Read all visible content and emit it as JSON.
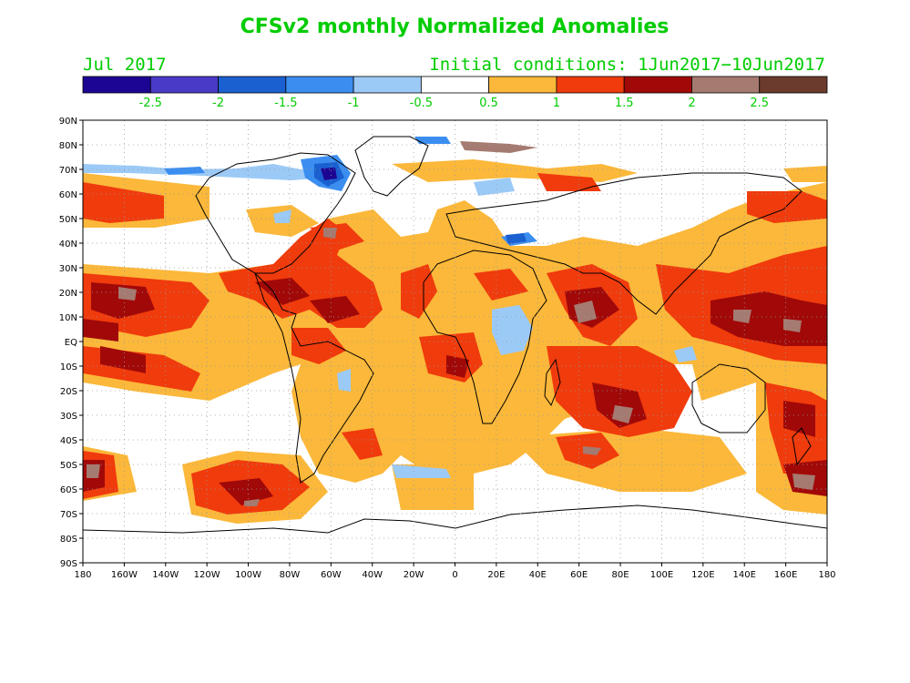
{
  "title": "CFSv2 monthly Normalized Anomalies",
  "month_label": "Jul 2017",
  "ic_label": "Initial conditions: 1Jun2017−10Jun2017",
  "colorbar": {
    "colors": [
      "#1d0594",
      "#4a3ac8",
      "#1a60d0",
      "#3b8ef0",
      "#9ccaf7",
      "#ffffff",
      "#fbb83a",
      "#f03b0c",
      "#a10909",
      "#a57a70",
      "#6b3b2e"
    ],
    "tick_labels": [
      "-2.5",
      "-2",
      "-1.5",
      "-1",
      "-0.5",
      "0.5",
      "1",
      "1.5",
      "2",
      "2.5"
    ]
  },
  "axes": {
    "lat_labels": [
      "90N",
      "80N",
      "70N",
      "60N",
      "50N",
      "40N",
      "30N",
      "20N",
      "10N",
      "EQ",
      "10S",
      "20S",
      "30S",
      "40S",
      "50S",
      "60S",
      "70S",
      "80S",
      "90S"
    ],
    "lon_labels": [
      "180",
      "160W",
      "140W",
      "120W",
      "100W",
      "80W",
      "60W",
      "40W",
      "20W",
      "0",
      "20E",
      "40E",
      "60E",
      "80E",
      "100E",
      "120E",
      "140E",
      "160E",
      "180"
    ]
  },
  "chart_data": {
    "type": "heatmap",
    "variable": "normalized anomaly",
    "lon_range": [
      -180,
      180
    ],
    "lat_range": [
      -90,
      90
    ],
    "grid": true,
    "anomaly_regions": [
      {
        "name": "n-pacific-warm",
        "lon": [
          -180,
          -150
        ],
        "lat": [
          45,
          65
        ],
        "level": 1
      },
      {
        "name": "ne-pacific-subtropics",
        "lon": [
          -180,
          -105
        ],
        "lat": [
          5,
          30
        ],
        "level": 1.5
      },
      {
        "name": "ne-pacific-core",
        "lon": [
          -170,
          -145
        ],
        "lat": [
          10,
          25
        ],
        "level": 2
      },
      {
        "name": "central-pacific-s",
        "lon": [
          -175,
          -130
        ],
        "lat": [
          -20,
          -5
        ],
        "level": 1.5
      },
      {
        "name": "gulf-caribbean",
        "lon": [
          -100,
          -55
        ],
        "lat": [
          8,
          30
        ],
        "level": 1.5
      },
      {
        "name": "tropical-atlantic",
        "lon": [
          -55,
          -15
        ],
        "lat": [
          0,
          25
        ],
        "level": 1
      },
      {
        "name": "nw-atlantic",
        "lon": [
          -75,
          -45
        ],
        "lat": [
          30,
          45
        ],
        "level": 1.5
      },
      {
        "name": "arabian-sea",
        "lon": [
          50,
          75
        ],
        "lat": [
          5,
          25
        ],
        "level": 2
      },
      {
        "name": "indian-ocean-s",
        "lon": [
          40,
          110
        ],
        "lat": [
          -40,
          -5
        ],
        "level": 1.5
      },
      {
        "name": "w-pacific",
        "lon": [
          115,
          180
        ],
        "lat": [
          0,
          25
        ],
        "level": 2
      },
      {
        "name": "sw-pacific",
        "lon": [
          150,
          180
        ],
        "lat": [
          -60,
          -20
        ],
        "level": 1.5
      },
      {
        "name": "s-pacific-high-lat",
        "lon": [
          -145,
          -90
        ],
        "lat": [
          -65,
          -45
        ],
        "level": 1.5
      },
      {
        "name": "canadian-arctic",
        "lon": [
          -80,
          -50
        ],
        "lat": [
          60,
          75
        ],
        "level": -1.5
      },
      {
        "name": "black-caspian",
        "lon": [
          30,
          50
        ],
        "lat": [
          38,
          45
        ],
        "level": -2
      },
      {
        "name": "central-africa",
        "lon": [
          10,
          30
        ],
        "lat": [
          -10,
          10
        ],
        "level": -0.5
      },
      {
        "name": "barents-kara",
        "lon": [
          20,
          60
        ],
        "lat": [
          75,
          82
        ],
        "level": 2.5
      }
    ]
  }
}
